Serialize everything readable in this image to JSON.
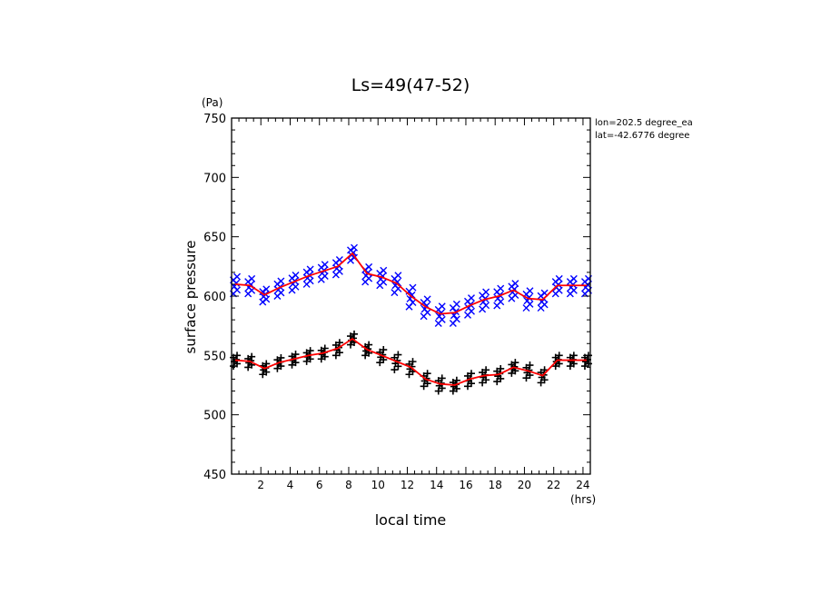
{
  "chart_data": {
    "type": "scatter",
    "title": "Ls=49(47-52)",
    "xlabel": "local time",
    "ylabel": "surface pressure",
    "x_unit": "(hrs)",
    "y_unit": "(Pa)",
    "xlim": [
      0,
      24.5
    ],
    "ylim": [
      450,
      750
    ],
    "xticks": [
      2,
      4,
      6,
      8,
      10,
      12,
      14,
      16,
      18,
      20,
      22,
      24
    ],
    "yticks": [
      450,
      500,
      550,
      600,
      650,
      700,
      750
    ],
    "annotations": [
      "lon=202.5 degree_ea",
      "lat=-42.6776 degree"
    ],
    "x": [
      0.25,
      1.25,
      2.25,
      3.25,
      4.25,
      5.25,
      6.25,
      7.25,
      8.25,
      9.25,
      10.25,
      11.25,
      12.25,
      13.25,
      14.25,
      15.25,
      16.25,
      17.25,
      18.25,
      19.25,
      20.25,
      21.25,
      22.25,
      23.25,
      24.25
    ],
    "series": [
      {
        "marker": "x",
        "color": "#0000ff",
        "mean": [
          610,
          609,
          601,
          607,
          612,
          617,
          621,
          625,
          636,
          619,
          616,
          611,
          600,
          591,
          585,
          586,
          592,
          597,
          600,
          605,
          598,
          597,
          609,
          609,
          609
        ],
        "spread": [
          8,
          7,
          6,
          7,
          7,
          7,
          7,
          7,
          6,
          7,
          7,
          8,
          9,
          8,
          8,
          9,
          8,
          8,
          8,
          7,
          8,
          7,
          7,
          7,
          7
        ]
      },
      {
        "marker": "+",
        "color": "#000000",
        "mean": [
          546,
          545,
          539,
          544,
          547,
          550,
          552,
          556,
          564,
          555,
          550,
          545,
          540,
          530,
          526,
          525,
          530,
          533,
          534,
          540,
          537,
          533,
          546,
          546,
          546
        ],
        "spread": [
          5,
          5,
          5,
          5,
          5,
          5,
          5,
          6,
          5,
          5,
          6,
          7,
          6,
          6,
          6,
          5,
          6,
          6,
          6,
          5,
          6,
          6,
          5,
          5,
          5
        ]
      }
    ],
    "mean_line_color": "#ff0000",
    "grid": false,
    "legend": "none"
  }
}
